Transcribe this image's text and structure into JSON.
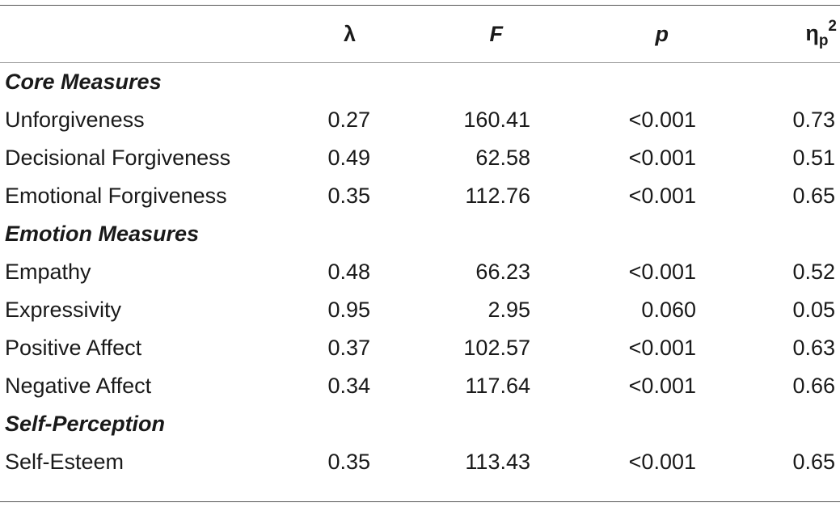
{
  "header": {
    "label": "",
    "lambda": "λ",
    "f": "F",
    "p": "p",
    "eta_base": "η",
    "eta_sub": "p",
    "eta_sup": "2"
  },
  "sections": [
    {
      "title": "Core Measures",
      "rows": [
        {
          "label": "Unforgiveness",
          "lambda": "0.27",
          "f": "160.41",
          "p": "<0.001",
          "eta": "0.73"
        },
        {
          "label": "Decisional Forgiveness",
          "lambda": "0.49",
          "f": "62.58",
          "p": "<0.001",
          "eta": "0.51"
        },
        {
          "label": "Emotional Forgiveness",
          "lambda": "0.35",
          "f": "112.76",
          "p": "<0.001",
          "eta": "0.65"
        }
      ]
    },
    {
      "title": "Emotion Measures",
      "rows": [
        {
          "label": "Empathy",
          "lambda": "0.48",
          "f": "66.23",
          "p": "<0.001",
          "eta": "0.52"
        },
        {
          "label": "Expressivity",
          "lambda": "0.95",
          "f": "2.95",
          "p": "0.060",
          "eta": "0.05"
        },
        {
          "label": "Positive Affect",
          "lambda": "0.37",
          "f": "102.57",
          "p": "<0.001",
          "eta": "0.63"
        },
        {
          "label": "Negative Affect",
          "lambda": "0.34",
          "f": "117.64",
          "p": "<0.001",
          "eta": "0.66"
        }
      ]
    },
    {
      "title": "Self-Perception",
      "rows": [
        {
          "label": "Self-Esteem",
          "lambda": "0.35",
          "f": "113.43",
          "p": "<0.001",
          "eta": "0.65"
        }
      ]
    }
  ]
}
